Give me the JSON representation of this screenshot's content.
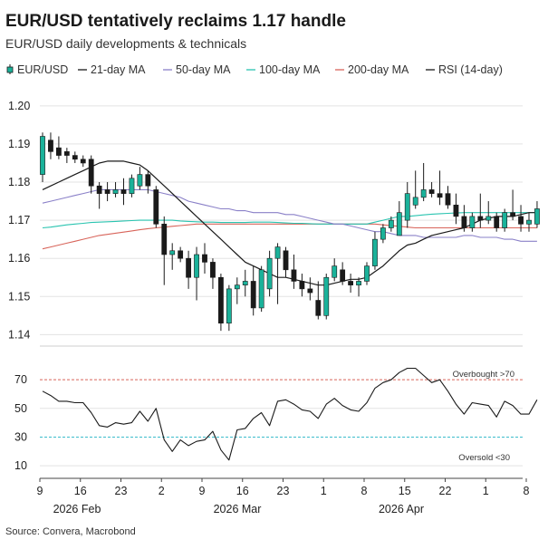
{
  "chart_data": {
    "type": "candlestick",
    "title": "EUR/USD tentatively reclaims 1.17 handle",
    "subtitle": "EUR/USD daily developments & technicals",
    "source": "Source: Convera, Macrobond",
    "legend": [
      {
        "name": "EUR/USD",
        "color": "#1ab29a",
        "marker": "candle"
      },
      {
        "name": "21-day MA",
        "color": "#1a1a1a",
        "marker": "line"
      },
      {
        "name": "50-day MA",
        "color": "#8a80c8",
        "marker": "line"
      },
      {
        "name": "100-day MA",
        "color": "#2ac4b0",
        "marker": "line"
      },
      {
        "name": "200-day MA",
        "color": "#d8645a",
        "marker": "line"
      },
      {
        "name": "RSI (14-day)",
        "color": "#1a1a1a",
        "marker": "line"
      }
    ],
    "colors": {
      "up": "#1ab29a",
      "down": "#1a1a1a",
      "overbought": "#d8645a",
      "oversold": "#3cbccc"
    },
    "price_axis": {
      "ylim": [
        1.137,
        1.204
      ],
      "ticks": [
        "1.14",
        "1.15",
        "1.16",
        "1.17",
        "1.18",
        "1.19",
        "1.20"
      ]
    },
    "rsi_axis": {
      "ylim": [
        5,
        84
      ],
      "ticks": [
        "10",
        "30",
        "50",
        "70"
      ]
    },
    "x_ticks": [
      "9",
      "16",
      "23",
      "2",
      "9",
      "16",
      "23",
      "1",
      "8",
      "15",
      "22",
      "1",
      "8"
    ],
    "month_labels": [
      "2026 Feb",
      "2026 Mar",
      "2026 Apr"
    ],
    "annotations": {
      "overbought": "Overbought >70",
      "oversold": "Oversold <30",
      "overbought_level": 70,
      "oversold_level": 30
    },
    "candles": [
      {
        "o": 1.182,
        "h": 1.193,
        "l": 1.18,
        "c": 1.192
      },
      {
        "o": 1.191,
        "h": 1.193,
        "l": 1.186,
        "c": 1.188
      },
      {
        "o": 1.189,
        "h": 1.192,
        "l": 1.186,
        "c": 1.187
      },
      {
        "o": 1.188,
        "h": 1.189,
        "l": 1.185,
        "c": 1.187
      },
      {
        "o": 1.187,
        "h": 1.188,
        "l": 1.185,
        "c": 1.186
      },
      {
        "o": 1.186,
        "h": 1.187,
        "l": 1.184,
        "c": 1.185
      },
      {
        "o": 1.186,
        "h": 1.187,
        "l": 1.177,
        "c": 1.179
      },
      {
        "o": 1.179,
        "h": 1.18,
        "l": 1.173,
        "c": 1.177
      },
      {
        "o": 1.178,
        "h": 1.18,
        "l": 1.175,
        "c": 1.177
      },
      {
        "o": 1.177,
        "h": 1.18,
        "l": 1.176,
        "c": 1.178
      },
      {
        "o": 1.178,
        "h": 1.181,
        "l": 1.174,
        "c": 1.177
      },
      {
        "o": 1.177,
        "h": 1.182,
        "l": 1.176,
        "c": 1.181
      },
      {
        "o": 1.179,
        "h": 1.184,
        "l": 1.178,
        "c": 1.182
      },
      {
        "o": 1.182,
        "h": 1.183,
        "l": 1.177,
        "c": 1.179
      },
      {
        "o": 1.178,
        "h": 1.179,
        "l": 1.168,
        "c": 1.169
      },
      {
        "o": 1.169,
        "h": 1.171,
        "l": 1.153,
        "c": 1.161
      },
      {
        "o": 1.161,
        "h": 1.164,
        "l": 1.157,
        "c": 1.162
      },
      {
        "o": 1.162,
        "h": 1.163,
        "l": 1.159,
        "c": 1.16
      },
      {
        "o": 1.16,
        "h": 1.162,
        "l": 1.152,
        "c": 1.155
      },
      {
        "o": 1.155,
        "h": 1.163,
        "l": 1.149,
        "c": 1.161
      },
      {
        "o": 1.161,
        "h": 1.164,
        "l": 1.156,
        "c": 1.159
      },
      {
        "o": 1.159,
        "h": 1.16,
        "l": 1.152,
        "c": 1.155
      },
      {
        "o": 1.155,
        "h": 1.156,
        "l": 1.141,
        "c": 1.143
      },
      {
        "o": 1.143,
        "h": 1.153,
        "l": 1.141,
        "c": 1.152
      },
      {
        "o": 1.152,
        "h": 1.155,
        "l": 1.148,
        "c": 1.153
      },
      {
        "o": 1.153,
        "h": 1.157,
        "l": 1.15,
        "c": 1.154
      },
      {
        "o": 1.154,
        "h": 1.158,
        "l": 1.145,
        "c": 1.147
      },
      {
        "o": 1.147,
        "h": 1.158,
        "l": 1.146,
        "c": 1.157
      },
      {
        "o": 1.152,
        "h": 1.162,
        "l": 1.15,
        "c": 1.16
      },
      {
        "o": 1.16,
        "h": 1.164,
        "l": 1.148,
        "c": 1.163
      },
      {
        "o": 1.162,
        "h": 1.163,
        "l": 1.155,
        "c": 1.157
      },
      {
        "o": 1.157,
        "h": 1.161,
        "l": 1.152,
        "c": 1.154
      },
      {
        "o": 1.154,
        "h": 1.156,
        "l": 1.15,
        "c": 1.152
      },
      {
        "o": 1.152,
        "h": 1.155,
        "l": 1.149,
        "c": 1.151
      },
      {
        "o": 1.149,
        "h": 1.154,
        "l": 1.144,
        "c": 1.145
      },
      {
        "o": 1.145,
        "h": 1.156,
        "l": 1.144,
        "c": 1.155
      },
      {
        "o": 1.155,
        "h": 1.16,
        "l": 1.154,
        "c": 1.158
      },
      {
        "o": 1.157,
        "h": 1.159,
        "l": 1.153,
        "c": 1.154
      },
      {
        "o": 1.154,
        "h": 1.156,
        "l": 1.151,
        "c": 1.153
      },
      {
        "o": 1.153,
        "h": 1.155,
        "l": 1.15,
        "c": 1.154
      },
      {
        "o": 1.154,
        "h": 1.159,
        "l": 1.153,
        "c": 1.158
      },
      {
        "o": 1.158,
        "h": 1.167,
        "l": 1.157,
        "c": 1.165
      },
      {
        "o": 1.165,
        "h": 1.169,
        "l": 1.164,
        "c": 1.168
      },
      {
        "o": 1.168,
        "h": 1.171,
        "l": 1.167,
        "c": 1.17
      },
      {
        "o": 1.166,
        "h": 1.175,
        "l": 1.166,
        "c": 1.172
      },
      {
        "o": 1.17,
        "h": 1.18,
        "l": 1.168,
        "c": 1.177
      },
      {
        "o": 1.174,
        "h": 1.183,
        "l": 1.173,
        "c": 1.176
      },
      {
        "o": 1.176,
        "h": 1.185,
        "l": 1.175,
        "c": 1.178
      },
      {
        "o": 1.178,
        "h": 1.18,
        "l": 1.176,
        "c": 1.177
      },
      {
        "o": 1.177,
        "h": 1.183,
        "l": 1.174,
        "c": 1.176
      },
      {
        "o": 1.177,
        "h": 1.179,
        "l": 1.173,
        "c": 1.174
      },
      {
        "o": 1.174,
        "h": 1.177,
        "l": 1.169,
        "c": 1.171
      },
      {
        "o": 1.171,
        "h": 1.174,
        "l": 1.167,
        "c": 1.168
      },
      {
        "o": 1.168,
        "h": 1.172,
        "l": 1.167,
        "c": 1.171
      },
      {
        "o": 1.171,
        "h": 1.177,
        "l": 1.168,
        "c": 1.17
      },
      {
        "o": 1.17,
        "h": 1.175,
        "l": 1.169,
        "c": 1.171
      },
      {
        "o": 1.171,
        "h": 1.172,
        "l": 1.167,
        "c": 1.168
      },
      {
        "o": 1.168,
        "h": 1.173,
        "l": 1.167,
        "c": 1.172
      },
      {
        "o": 1.172,
        "h": 1.178,
        "l": 1.17,
        "c": 1.171
      },
      {
        "o": 1.171,
        "h": 1.174,
        "l": 1.167,
        "c": 1.169
      },
      {
        "o": 1.169,
        "h": 1.172,
        "l": 1.167,
        "c": 1.17
      },
      {
        "o": 1.169,
        "h": 1.175,
        "l": 1.168,
        "c": 1.173
      }
    ],
    "ma21": [
      1.178,
      1.179,
      1.18,
      1.181,
      1.182,
      1.183,
      1.184,
      1.185,
      1.1855,
      1.1855,
      1.1855,
      1.185,
      1.1845,
      1.183,
      1.181,
      1.179,
      1.177,
      1.175,
      1.173,
      1.171,
      1.169,
      1.167,
      1.165,
      1.163,
      1.161,
      1.159,
      1.158,
      1.157,
      1.156,
      1.155,
      1.155,
      1.1545,
      1.154,
      1.1535,
      1.153,
      1.153,
      1.1535,
      1.154,
      1.1545,
      1.1545,
      1.155,
      1.1565,
      1.158,
      1.16,
      1.162,
      1.1635,
      1.164,
      1.165,
      1.166,
      1.1665,
      1.167,
      1.1675,
      1.168,
      1.169,
      1.17,
      1.1705,
      1.171,
      1.171,
      1.171,
      1.1715,
      1.172,
      1.172
    ],
    "ma50": [
      1.1745,
      1.175,
      1.1755,
      1.176,
      1.1765,
      1.177,
      1.1775,
      1.178,
      1.178,
      1.178,
      1.178,
      1.178,
      1.178,
      1.178,
      1.1775,
      1.177,
      1.1765,
      1.176,
      1.175,
      1.1745,
      1.174,
      1.1735,
      1.173,
      1.173,
      1.1725,
      1.1725,
      1.172,
      1.172,
      1.172,
      1.172,
      1.1715,
      1.1715,
      1.171,
      1.1705,
      1.17,
      1.1695,
      1.169,
      1.169,
      1.1685,
      1.168,
      1.1675,
      1.167,
      1.167,
      1.1665,
      1.166,
      1.166,
      1.166,
      1.1655,
      1.1655,
      1.1655,
      1.1655,
      1.1655,
      1.166,
      1.166,
      1.1655,
      1.1655,
      1.1655,
      1.165,
      1.165,
      1.1645,
      1.1645,
      1.1645
    ],
    "ma100": [
      1.168,
      1.1682,
      1.1685,
      1.1688,
      1.169,
      1.1692,
      1.1694,
      1.1695,
      1.1696,
      1.1697,
      1.1698,
      1.1699,
      1.17,
      1.17,
      1.17,
      1.17,
      1.17,
      1.1698,
      1.1697,
      1.1696,
      1.1695,
      1.1695,
      1.1694,
      1.1694,
      1.1694,
      1.1694,
      1.1695,
      1.1695,
      1.1695,
      1.1694,
      1.1693,
      1.1692,
      1.1692,
      1.1691,
      1.169,
      1.169,
      1.169,
      1.169,
      1.169,
      1.169,
      1.169,
      1.1695,
      1.17,
      1.1705,
      1.171,
      1.171,
      1.1712,
      1.1714,
      1.1716,
      1.1717,
      1.1718,
      1.1719,
      1.172,
      1.172,
      1.172,
      1.172,
      1.172,
      1.172,
      1.172,
      1.172,
      1.172,
      1.172
    ],
    "ma200": [
      1.1625,
      1.163,
      1.1635,
      1.164,
      1.1645,
      1.165,
      1.1655,
      1.166,
      1.1663,
      1.1666,
      1.1669,
      1.1672,
      1.1675,
      1.1678,
      1.168,
      1.1682,
      1.1684,
      1.1686,
      1.1688,
      1.169,
      1.169,
      1.169,
      1.169,
      1.169,
      1.169,
      1.169,
      1.169,
      1.169,
      1.169,
      1.169,
      1.169,
      1.169,
      1.169,
      1.169,
      1.169,
      1.169,
      1.169,
      1.169,
      1.169,
      1.169,
      1.169,
      1.169,
      1.1688,
      1.1686,
      1.1684,
      1.1682,
      1.168,
      1.168,
      1.168,
      1.168,
      1.168,
      1.168,
      1.168,
      1.168,
      1.168,
      1.168,
      1.168,
      1.168,
      1.168,
      1.168,
      1.168,
      1.168
    ],
    "rsi": [
      62,
      59,
      55,
      55,
      54,
      54,
      47,
      38,
      37,
      40,
      39,
      40,
      48,
      41,
      50,
      28,
      20,
      28,
      24,
      27,
      28,
      34,
      21,
      14,
      35,
      36,
      43,
      47,
      38,
      55,
      56,
      53,
      49,
      48,
      43,
      53,
      57,
      52,
      49,
      48,
      54,
      64,
      68,
      70,
      75,
      78,
      78,
      73,
      68,
      70,
      62,
      53,
      46,
      54,
      53,
      52,
      44,
      55,
      52,
      46,
      46,
      56
    ]
  }
}
